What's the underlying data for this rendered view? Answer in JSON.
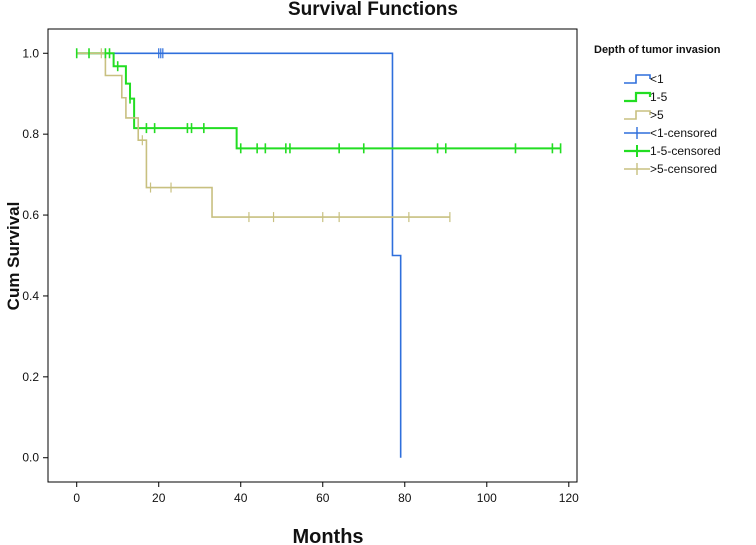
{
  "chart_data": {
    "type": "line",
    "title": "Survival Functions",
    "xlabel": "Months",
    "ylabel": "Cum Survival",
    "xlim": [
      -7,
      122
    ],
    "ylim": [
      -0.06,
      1.06
    ],
    "xticks": [
      0,
      20,
      40,
      60,
      80,
      100,
      120
    ],
    "yticks": [
      0.0,
      0.2,
      0.4,
      0.6,
      0.8,
      1.0
    ],
    "xtick_labels": [
      "0",
      "20",
      "40",
      "60",
      "80",
      "100",
      "120"
    ],
    "ytick_labels": [
      "0.0",
      "0.2",
      "0.4",
      "0.6",
      "0.8",
      "1.0"
    ],
    "legend_title": "Depth of tumor invasion",
    "series": [
      {
        "name": "<1",
        "color": "#2f6fdc",
        "steps": [
          [
            0,
            1.0
          ],
          [
            77,
            1.0
          ],
          [
            77,
            0.5
          ],
          [
            79,
            0.5
          ],
          [
            79,
            0.0
          ]
        ],
        "censored_name": "<1-censored",
        "censored": [
          [
            20,
            1.0
          ],
          [
            20.5,
            1.0
          ],
          [
            21,
            1.0
          ]
        ]
      },
      {
        "name": "1-5",
        "color": "#22dd22",
        "steps": [
          [
            0,
            1.0
          ],
          [
            9,
            1.0
          ],
          [
            9,
            0.968
          ],
          [
            12,
            0.968
          ],
          [
            12,
            0.925
          ],
          [
            13,
            0.925
          ],
          [
            13,
            0.888
          ],
          [
            14,
            0.888
          ],
          [
            14,
            0.815
          ],
          [
            39,
            0.815
          ],
          [
            39,
            0.765
          ],
          [
            118,
            0.765
          ]
        ],
        "censored_name": "1-5-censored",
        "censored": [
          [
            0,
            1.0
          ],
          [
            3,
            1.0
          ],
          [
            7,
            1.0
          ],
          [
            8,
            1.0
          ],
          [
            10,
            0.968
          ],
          [
            13,
            0.888
          ],
          [
            17,
            0.815
          ],
          [
            19,
            0.815
          ],
          [
            27,
            0.815
          ],
          [
            28,
            0.815
          ],
          [
            31,
            0.815
          ],
          [
            40,
            0.765
          ],
          [
            44,
            0.765
          ],
          [
            46,
            0.765
          ],
          [
            51,
            0.765
          ],
          [
            52,
            0.765
          ],
          [
            64,
            0.765
          ],
          [
            70,
            0.765
          ],
          [
            88,
            0.765
          ],
          [
            90,
            0.765
          ],
          [
            107,
            0.765
          ],
          [
            116,
            0.765
          ],
          [
            118,
            0.765
          ]
        ]
      },
      {
        "name": ">5",
        "color": "#c8c080",
        "steps": [
          [
            0,
            1.0
          ],
          [
            7,
            1.0
          ],
          [
            7,
            0.945
          ],
          [
            11,
            0.945
          ],
          [
            11,
            0.89
          ],
          [
            12,
            0.89
          ],
          [
            12,
            0.84
          ],
          [
            15,
            0.84
          ],
          [
            15,
            0.785
          ],
          [
            17,
            0.785
          ],
          [
            17,
            0.668
          ],
          [
            33,
            0.668
          ],
          [
            33,
            0.595
          ],
          [
            91,
            0.595
          ]
        ],
        "censored_name": ">5-censored",
        "censored": [
          [
            6,
            1.0
          ],
          [
            16,
            0.785
          ],
          [
            18,
            0.668
          ],
          [
            23,
            0.668
          ],
          [
            42,
            0.595
          ],
          [
            48,
            0.595
          ],
          [
            60,
            0.595
          ],
          [
            64,
            0.595
          ],
          [
            81,
            0.595
          ],
          [
            91,
            0.595
          ]
        ]
      }
    ]
  }
}
